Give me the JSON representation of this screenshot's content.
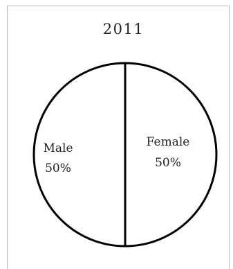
{
  "chart_data": {
    "type": "pie",
    "title": "2011",
    "slices": [
      {
        "label": "Male",
        "value": 50,
        "value_label": "50%"
      },
      {
        "label": "Female",
        "value": 50,
        "value_label": "50%"
      }
    ],
    "colors": {
      "fill": "#ffffff",
      "stroke": "#000000"
    }
  }
}
